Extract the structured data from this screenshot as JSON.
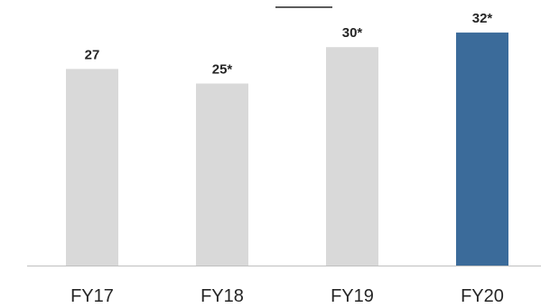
{
  "chart_data": {
    "type": "bar",
    "categories": [
      "FY17",
      "FY18",
      "FY19",
      "FY20"
    ],
    "values": [
      27,
      25,
      30,
      32
    ],
    "value_labels": [
      "27",
      "25*",
      "30*",
      "32*"
    ],
    "ylim": [
      0,
      33
    ],
    "grid": false,
    "colors": {
      "default": "#d9d9d9",
      "highlight": "#3b6b9a",
      "axis": "#bfbfbf",
      "top_line": "#262626"
    },
    "highlight_index": 3
  }
}
